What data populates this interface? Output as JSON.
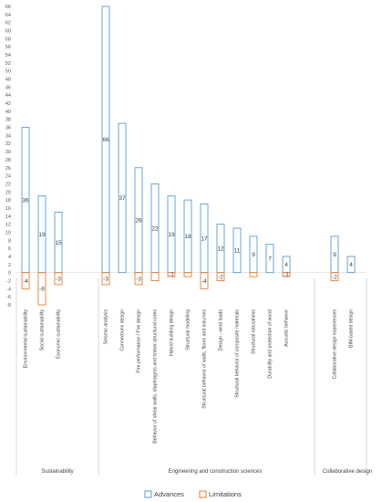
{
  "chart_data": {
    "type": "bar",
    "ylim": [
      -8,
      66
    ],
    "ytick_step": 2,
    "grid": false,
    "legend_position": "bottom",
    "series": [
      {
        "name": "Advances",
        "color": "#5B9BD5"
      },
      {
        "name": "Limitations",
        "color": "#ED7D31"
      }
    ],
    "categories": [
      {
        "label": "Environmental sustainability",
        "group": 0,
        "advances": 36,
        "limitations": -4,
        "adv_label": "36",
        "lim_label": "-4"
      },
      {
        "label": "Social sustainability",
        "group": 0,
        "advances": 19,
        "limitations": -8,
        "adv_label": "19",
        "lim_label": "-8"
      },
      {
        "label": "Economic sustainability",
        "group": 0,
        "advances": 15,
        "limitations": -3,
        "adv_label": "15",
        "lim_label": "-3"
      },
      {
        "label": "Seismic analysis",
        "group": 1,
        "advances": 66,
        "limitations": -3,
        "adv_label": "66",
        "lim_label": "-3"
      },
      {
        "label": "Connections design",
        "group": 1,
        "advances": 37,
        "limitations": 0,
        "adv_label": "37",
        "lim_label": ""
      },
      {
        "label": "Fire performance / Fire design",
        "group": 1,
        "advances": 26,
        "limitations": -3,
        "adv_label": "26",
        "lim_label": "-3"
      },
      {
        "label": "Behavior of shear walls, diaphragms and timber-structural cores",
        "group": 1,
        "advances": 22,
        "limitations": -2,
        "adv_label": "22",
        "lim_label": ""
      },
      {
        "label": "Hybrid building design",
        "group": 1,
        "advances": 19,
        "limitations": -1,
        "adv_label": "19",
        "lim_label": "-1"
      },
      {
        "label": "Structural modeling",
        "group": 1,
        "advances": 18,
        "limitations": -1,
        "adv_label": "18",
        "lim_label": ""
      },
      {
        "label": "Structural behavior of walls, floors and columns",
        "group": 1,
        "advances": 17,
        "limitations": -4,
        "adv_label": "17",
        "lim_label": "-4"
      },
      {
        "label": "Design - wind loads",
        "group": 1,
        "advances": 12,
        "limitations": -2,
        "adv_label": "12",
        "lim_label": "-2"
      },
      {
        "label": "Structural behavior of composite materials",
        "group": 1,
        "advances": 11,
        "limitations": 0,
        "adv_label": "11",
        "lim_label": ""
      },
      {
        "label": "Structural robustness",
        "group": 1,
        "advances": 9,
        "limitations": -1,
        "adv_label": "9",
        "lim_label": ""
      },
      {
        "label": "Durability and protection of wood",
        "group": 1,
        "advances": 7,
        "limitations": 0,
        "adv_label": "7",
        "lim_label": ""
      },
      {
        "label": "Acoustic behavior",
        "group": 1,
        "advances": 4,
        "limitations": -1,
        "adv_label": "4",
        "lim_label": "-1"
      },
      {
        "label": "Collaborative design experiences",
        "group": 2,
        "advances": 9,
        "limitations": -2,
        "adv_label": "9",
        "lim_label": "-2"
      },
      {
        "label": "BIM-based design",
        "group": 2,
        "advances": 4,
        "limitations": 0,
        "adv_label": "4",
        "lim_label": ""
      }
    ],
    "groups": [
      "Sustainability",
      "Engineering and construction sciences",
      "Collaborative design"
    ]
  },
  "legend": {
    "advances": "Advances",
    "limitations": "Limitations"
  }
}
